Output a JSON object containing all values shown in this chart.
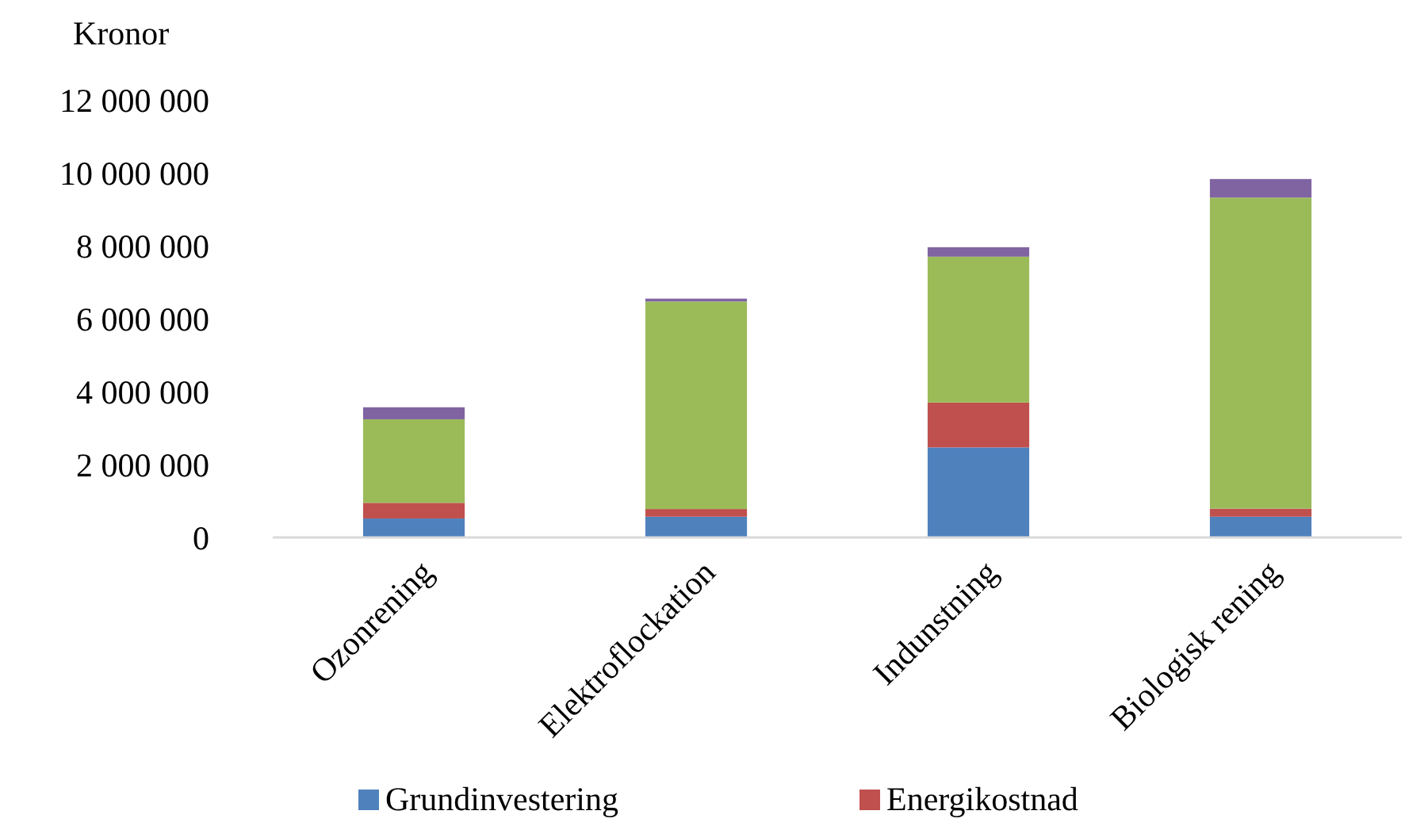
{
  "chart_data": {
    "type": "bar",
    "stacked": true,
    "ylabel": "Kronor",
    "categories": [
      "Ozonrening",
      "Elektroflockation",
      "Indunstning",
      "Biologisk rening"
    ],
    "series": [
      {
        "name": "Grundinvestering",
        "color": "#4f81bd",
        "values": [
          520000,
          570000,
          2470000,
          570000
        ]
      },
      {
        "name": "Energikostnad",
        "color": "#c0504d",
        "values": [
          430000,
          210000,
          1230000,
          220000
        ]
      },
      {
        "color": "#9bbb59",
        "values": [
          2290000,
          5690000,
          4000000,
          8530000
        ]
      },
      {
        "color": "#8064a2",
        "values": [
          330000,
          80000,
          260000,
          510000
        ]
      }
    ],
    "ylim": [
      0,
      12000000
    ],
    "yticks": [
      {
        "value": 0,
        "label": "0"
      },
      {
        "value": 2000000,
        "label": "2 000 000"
      },
      {
        "value": 4000000,
        "label": "4 000 000"
      },
      {
        "value": 6000000,
        "label": "6 000 000"
      },
      {
        "value": 8000000,
        "label": "8 000 000"
      },
      {
        "value": 10000000,
        "label": "10 000 000"
      },
      {
        "value": 12000000,
        "label": "12 000 000"
      }
    ],
    "grid": false,
    "legend": "bottom"
  }
}
